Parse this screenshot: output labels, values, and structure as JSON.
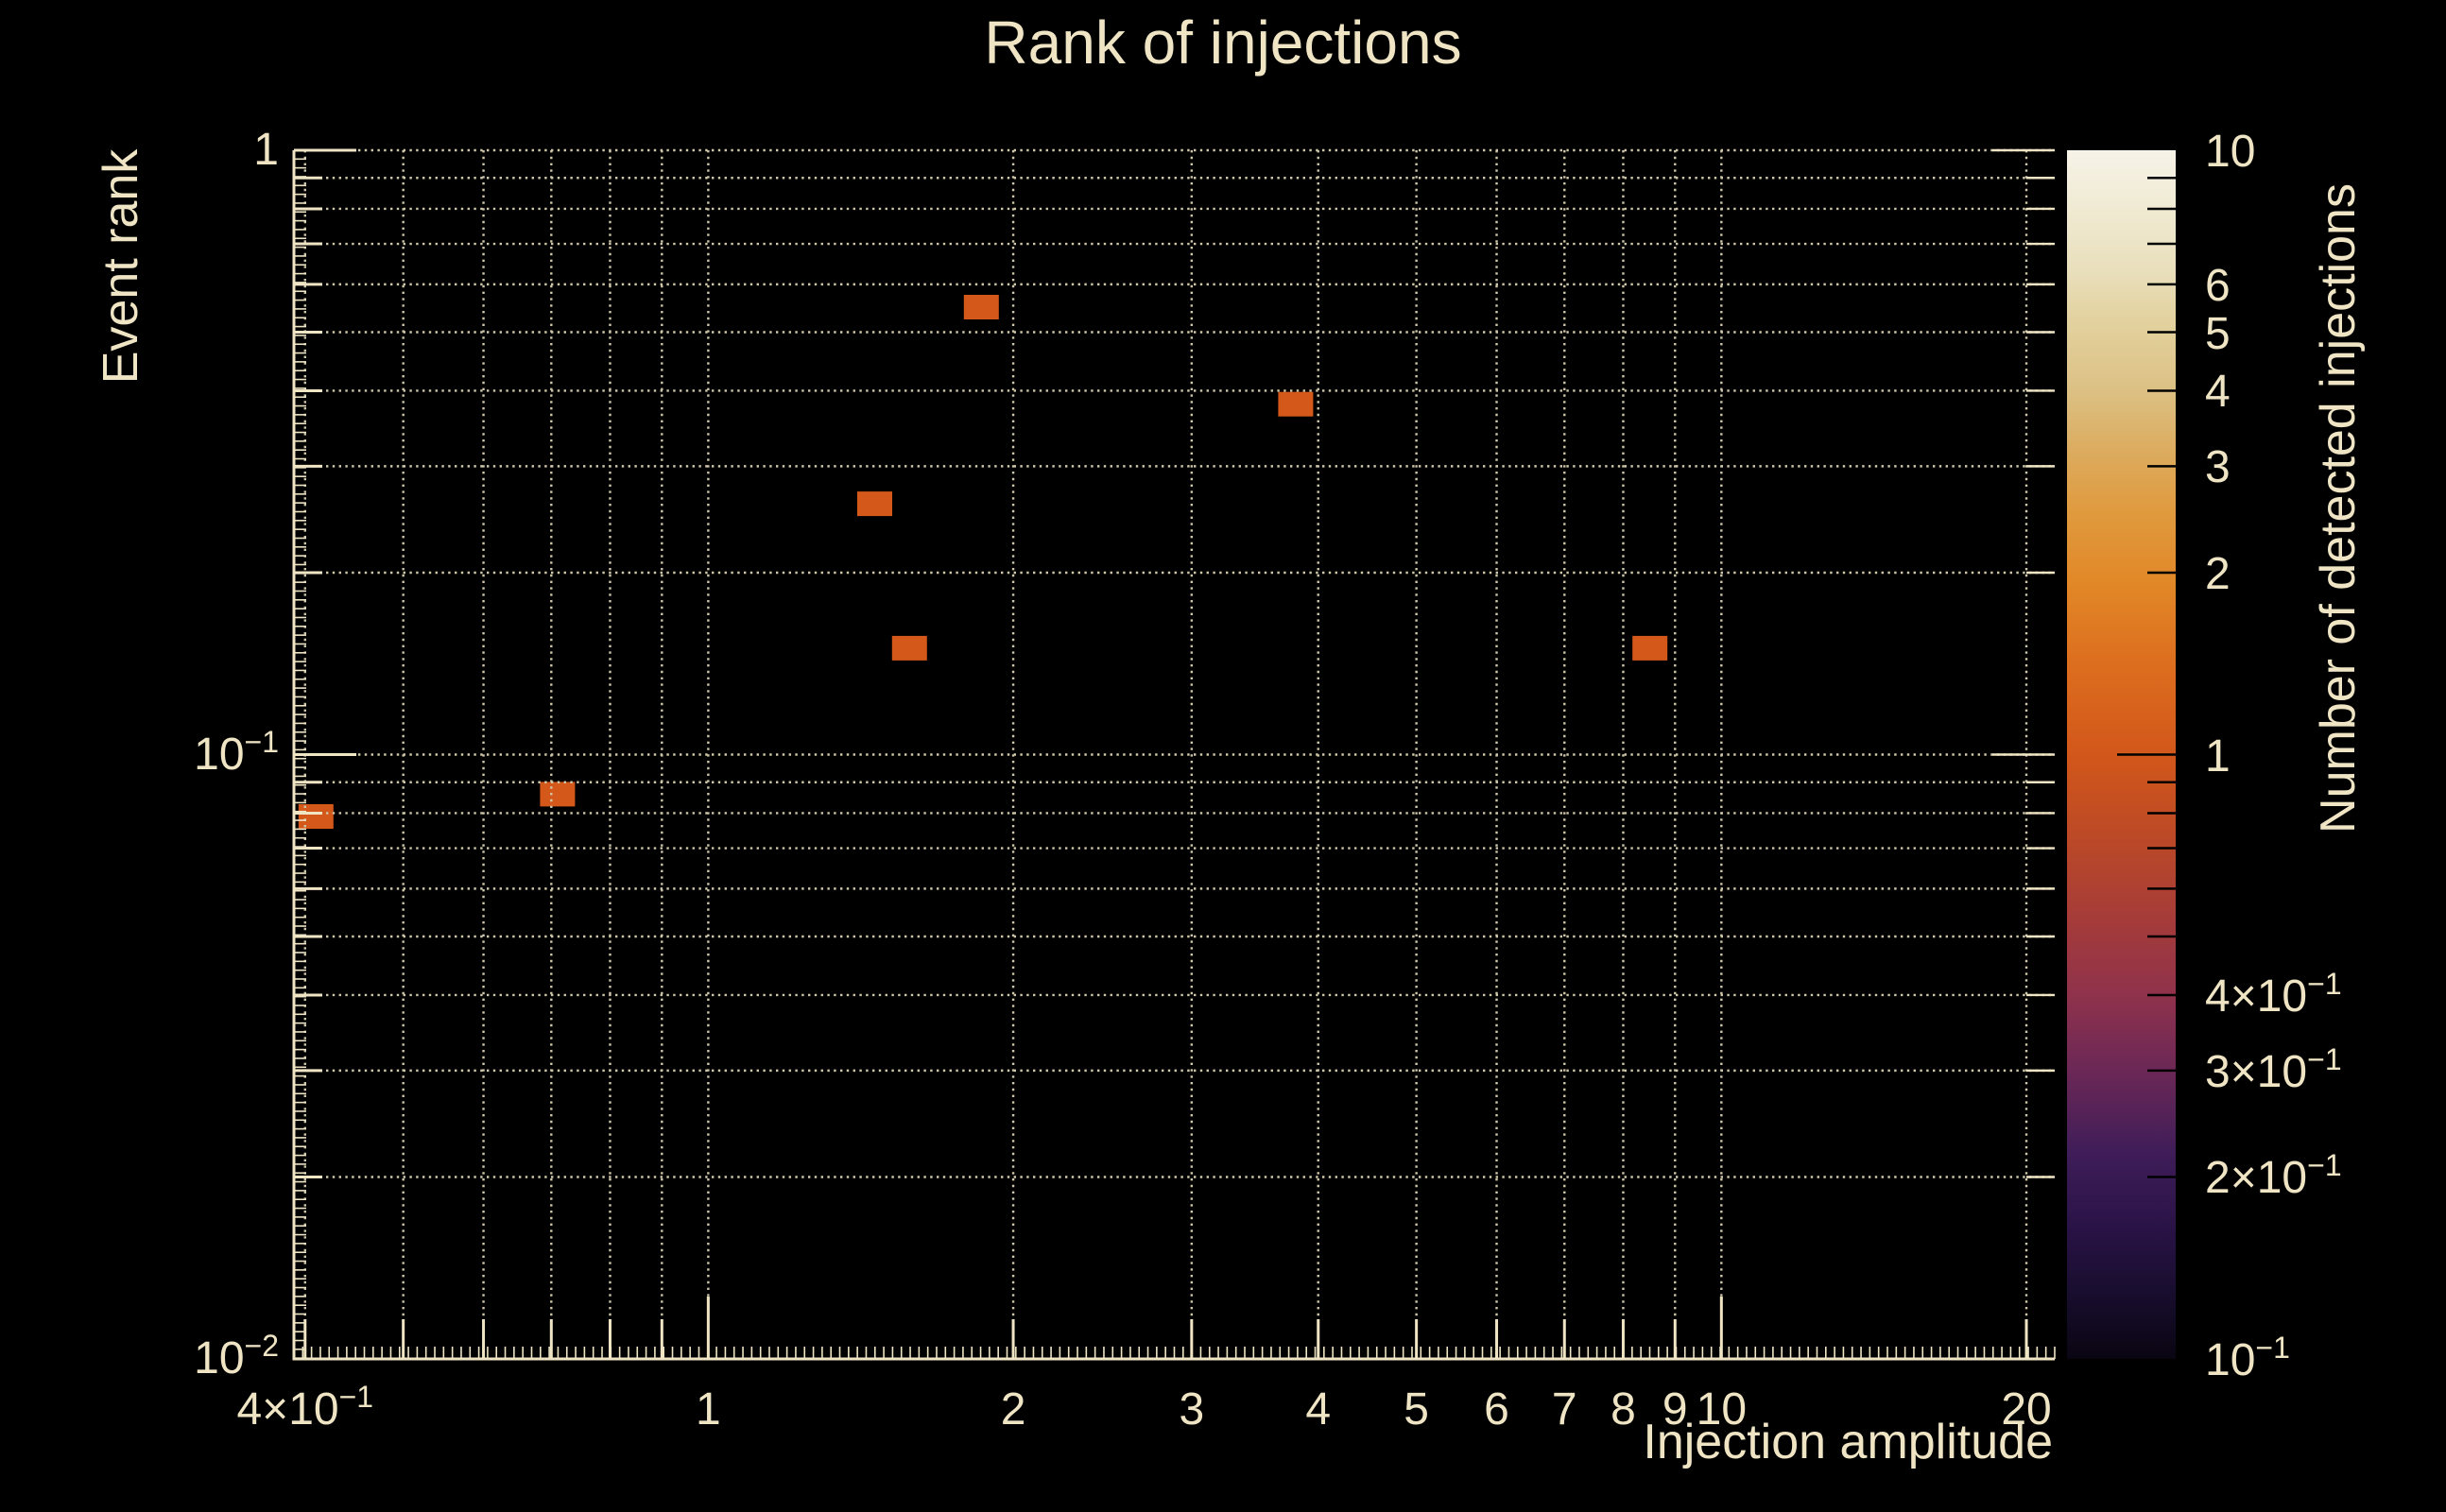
{
  "title": "Rank of injections",
  "colors": {
    "background": "#000000",
    "text": "#efe5c4",
    "grid": "#cfc7a9",
    "axis": "#efe5c4",
    "point": "#d3581a",
    "colorbar_tick": "#000000"
  },
  "chart_data": {
    "type": "heatmap",
    "title": "Rank of injections",
    "xlabel": "Injection amplitude",
    "ylabel": "Event rank",
    "zlabel": "Number of detected injections",
    "xscale": "log",
    "yscale": "log",
    "zscale": "log",
    "xlim": [
      0.39,
      21.33
    ],
    "ylim": [
      0.01,
      1.0
    ],
    "zlim": [
      0.1,
      10
    ],
    "grid": true,
    "points": [
      {
        "x": 0.41,
        "y": 0.079,
        "count": 1
      },
      {
        "x": 0.71,
        "y": 0.086,
        "count": 1
      },
      {
        "x": 1.46,
        "y": 0.26,
        "count": 1
      },
      {
        "x": 1.58,
        "y": 0.15,
        "count": 1
      },
      {
        "x": 1.86,
        "y": 0.55,
        "count": 1
      },
      {
        "x": 3.8,
        "y": 0.38,
        "count": 1
      },
      {
        "x": 8.5,
        "y": 0.15,
        "count": 1
      }
    ],
    "x_ticks": [
      {
        "v": 0.4,
        "t": "4×10",
        "e": "−1"
      },
      {
        "v": 1,
        "t": "1"
      },
      {
        "v": 2,
        "t": "2"
      },
      {
        "v": 3,
        "t": "3"
      },
      {
        "v": 4,
        "t": "4"
      },
      {
        "v": 5,
        "t": "5"
      },
      {
        "v": 6,
        "t": "6"
      },
      {
        "v": 7,
        "t": "7"
      },
      {
        "v": 8,
        "t": "8"
      },
      {
        "v": 9,
        "t": "9"
      },
      {
        "v": 10,
        "t": "10"
      },
      {
        "v": 20,
        "t": "20"
      }
    ],
    "y_ticks": [
      {
        "v": 1,
        "t": "1"
      },
      {
        "v": 0.1,
        "t": "10",
        "e": "−1"
      },
      {
        "v": 0.01,
        "t": "10",
        "e": "−2"
      }
    ],
    "z_ticks": [
      {
        "v": 10,
        "t": "10"
      },
      {
        "v": 6,
        "t": "6"
      },
      {
        "v": 5,
        "t": "5"
      },
      {
        "v": 4,
        "t": "4"
      },
      {
        "v": 3,
        "t": "3"
      },
      {
        "v": 2,
        "t": "2"
      },
      {
        "v": 1,
        "t": "1"
      },
      {
        "v": 0.4,
        "t": "4×10",
        "e": "−1"
      },
      {
        "v": 0.3,
        "t": "3×10",
        "e": "−1"
      },
      {
        "v": 0.2,
        "t": "2×10",
        "e": "−1"
      },
      {
        "v": 0.1,
        "t": "10",
        "e": "−1"
      }
    ],
    "x_grid": [
      0.4,
      0.5,
      0.6,
      0.7,
      0.8,
      0.9,
      1,
      2,
      3,
      4,
      5,
      6,
      7,
      8,
      9,
      10,
      20
    ],
    "y_grid": [
      0.02,
      0.03,
      0.04,
      0.05,
      0.06,
      0.07,
      0.08,
      0.09,
      0.1,
      0.2,
      0.3,
      0.4,
      0.5,
      0.6,
      0.7,
      0.8,
      0.9,
      1
    ],
    "x_minor": [
      0.4,
      0.5,
      0.6,
      0.7,
      0.8,
      0.9,
      2,
      3,
      4,
      5,
      6,
      7,
      8,
      9,
      20
    ],
    "x_major": [
      1,
      10
    ],
    "y_minor": [
      0.02,
      0.03,
      0.04,
      0.05,
      0.06,
      0.07,
      0.08,
      0.09,
      0.2,
      0.3,
      0.4,
      0.5,
      0.6,
      0.7,
      0.8,
      0.9
    ],
    "y_major": [
      0.1,
      1
    ],
    "z_minor": [
      0.2,
      0.3,
      0.4,
      0.5,
      0.6,
      0.7,
      0.8,
      0.9,
      2,
      3,
      4,
      5,
      6,
      7,
      8,
      9
    ],
    "z_major": [
      1
    ],
    "colorbar_gradient": [
      [
        0.0,
        "#0a0512"
      ],
      [
        0.05,
        "#170d2c"
      ],
      [
        0.11,
        "#2a1347"
      ],
      [
        0.17,
        "#3f1d58"
      ],
      [
        0.24,
        "#6c2856"
      ],
      [
        0.3,
        "#8f324c"
      ],
      [
        0.36,
        "#a43b3a"
      ],
      [
        0.42,
        "#b8472a"
      ],
      [
        0.47,
        "#c8511f"
      ],
      [
        0.5,
        "#d2571b"
      ],
      [
        0.57,
        "#dc6c1e"
      ],
      [
        0.64,
        "#e18727"
      ],
      [
        0.7,
        "#e09a3e"
      ],
      [
        0.75,
        "#dcab5e"
      ],
      [
        0.8,
        "#dcc083"
      ],
      [
        0.86,
        "#e3d2a0"
      ],
      [
        0.9,
        "#e9dfbc"
      ],
      [
        0.95,
        "#f0ead2"
      ],
      [
        1.0,
        "#f6f3e8"
      ]
    ]
  }
}
